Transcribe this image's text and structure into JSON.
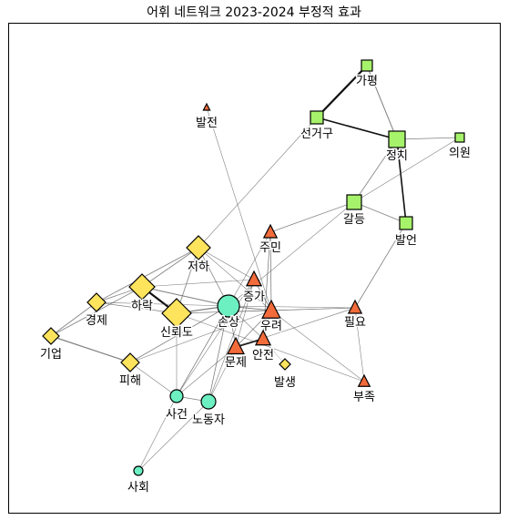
{
  "title": "어휘 네트워크 2023-2024 부정적 효과",
  "colors": {
    "diamond": "#fde45c",
    "circle": "#6cf0c2",
    "triangle": "#f26b3a",
    "square": "#a6f26a",
    "edge": "#555555",
    "outline": "#000000"
  },
  "nodes": [
    {
      "id": "가평",
      "shape": "square",
      "size": 6
    },
    {
      "id": "선거구",
      "shape": "square",
      "size": 7
    },
    {
      "id": "정치",
      "shape": "square",
      "size": 9
    },
    {
      "id": "의원",
      "shape": "square",
      "size": 5
    },
    {
      "id": "갈등",
      "shape": "square",
      "size": 8
    },
    {
      "id": "발언",
      "shape": "square",
      "size": 7
    },
    {
      "id": "발전",
      "shape": "triangle",
      "size": 4
    },
    {
      "id": "주민",
      "shape": "triangle",
      "size": 8
    },
    {
      "id": "증가",
      "shape": "triangle",
      "size": 9
    },
    {
      "id": "우려",
      "shape": "triangle",
      "size": 11
    },
    {
      "id": "필요",
      "shape": "triangle",
      "size": 8
    },
    {
      "id": "문제",
      "shape": "triangle",
      "size": 10
    },
    {
      "id": "안전",
      "shape": "triangle",
      "size": 9
    },
    {
      "id": "부족",
      "shape": "triangle",
      "size": 7
    },
    {
      "id": "저하",
      "shape": "diamond",
      "size": 13
    },
    {
      "id": "하락",
      "shape": "diamond",
      "size": 14
    },
    {
      "id": "신뢰도",
      "shape": "diamond",
      "size": 16
    },
    {
      "id": "경제",
      "shape": "diamond",
      "size": 10
    },
    {
      "id": "기업",
      "shape": "diamond",
      "size": 9
    },
    {
      "id": "피해",
      "shape": "diamond",
      "size": 10
    },
    {
      "id": "발생",
      "shape": "diamond",
      "size": 6
    },
    {
      "id": "손상",
      "shape": "circle",
      "size": 12
    },
    {
      "id": "사건",
      "shape": "circle",
      "size": 7
    },
    {
      "id": "노동자",
      "shape": "circle",
      "size": 8
    },
    {
      "id": "사회",
      "shape": "circle",
      "size": 5
    }
  ],
  "edges": [
    [
      "가평",
      "선거구",
      2.2
    ],
    [
      "가평",
      "정치",
      1
    ],
    [
      "선거구",
      "정치",
      1.6
    ],
    [
      "선거구",
      "저하",
      0.6
    ],
    [
      "정치",
      "의원",
      0.8
    ],
    [
      "정치",
      "갈등",
      0.8
    ],
    [
      "정치",
      "발언",
      1.6
    ],
    [
      "갈등",
      "의원",
      0.6
    ],
    [
      "갈등",
      "주민",
      0.8
    ],
    [
      "갈등",
      "손상",
      0.6
    ],
    [
      "갈등",
      "발언",
      0.8
    ],
    [
      "발언",
      "필요",
      0.8
    ],
    [
      "발전",
      "우려",
      0.6
    ],
    [
      "주민",
      "우려",
      0.8
    ],
    [
      "주민",
      "안전",
      0.8
    ],
    [
      "주민",
      "손상",
      0.6
    ],
    [
      "증가",
      "우려",
      0.8
    ],
    [
      "증가",
      "문제",
      0.6
    ],
    [
      "증가",
      "사건",
      0.6
    ],
    [
      "증가",
      "노동자",
      0.6
    ],
    [
      "증가",
      "하락",
      0.6
    ],
    [
      "우려",
      "필요",
      0.6
    ],
    [
      "우려",
      "부족",
      0.6
    ],
    [
      "우려",
      "문제",
      0.8
    ],
    [
      "우려",
      "안전",
      0.8
    ],
    [
      "문제",
      "안전",
      1.8
    ],
    [
      "문제",
      "손상",
      0.8
    ],
    [
      "문제",
      "필요",
      0.6
    ],
    [
      "문제",
      "노동자",
      0.6
    ],
    [
      "필요",
      "부족",
      0.6
    ],
    [
      "필요",
      "손상",
      0.6
    ],
    [
      "필요",
      "신뢰도",
      0.6
    ],
    [
      "부족",
      "신뢰도",
      0.6
    ],
    [
      "저하",
      "하락",
      0.8
    ],
    [
      "저하",
      "신뢰도",
      0.8
    ],
    [
      "저하",
      "경제",
      0.8
    ],
    [
      "저하",
      "손상",
      0.8
    ],
    [
      "저하",
      "우려",
      0.6
    ],
    [
      "저하",
      "증가",
      0.6
    ],
    [
      "하락",
      "경제",
      0.8
    ],
    [
      "하락",
      "신뢰도",
      2.2
    ],
    [
      "하락",
      "손상",
      1
    ],
    [
      "하락",
      "기업",
      0.8
    ],
    [
      "경제",
      "기업",
      0.8
    ],
    [
      "경제",
      "신뢰도",
      0.8
    ],
    [
      "경제",
      "손상",
      0.6
    ],
    [
      "기업",
      "피해",
      1.2
    ],
    [
      "피해",
      "손상",
      0.8
    ],
    [
      "피해",
      "우려",
      0.6
    ],
    [
      "피해",
      "사건",
      0.6
    ],
    [
      "신뢰도",
      "손상",
      1.2
    ],
    [
      "신뢰도",
      "우려",
      0.6
    ],
    [
      "신뢰도",
      "사건",
      0.6
    ],
    [
      "손상",
      "우려",
      1
    ],
    [
      "손상",
      "노동자",
      0.8
    ],
    [
      "손상",
      "사건",
      0.8
    ],
    [
      "손상",
      "안전",
      0.6
    ],
    [
      "사건",
      "노동자",
      0.8
    ],
    [
      "사건",
      "사회",
      0.6
    ],
    [
      "노동자",
      "사회",
      0.6
    ],
    [
      "사건",
      "문제",
      0.6
    ],
    [
      "안전",
      "발생",
      0.4
    ]
  ]
}
